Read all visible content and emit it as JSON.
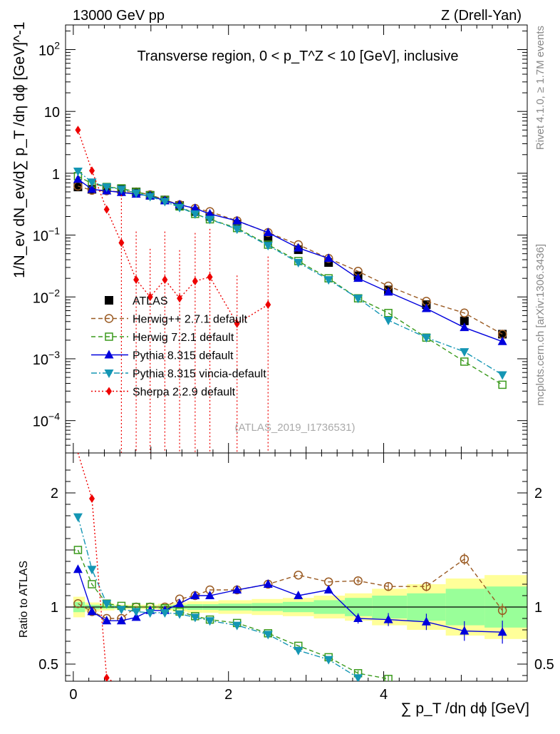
{
  "header": {
    "left": "13000 GeV pp",
    "right": "Z (Drell-Yan)",
    "side_rivet": "Rivet 4.1.0, ≥ 1.7M events",
    "side_mcplots": "mcplots.cern.ch [arXiv:1306.3436]",
    "watermark": "(ATLAS_2019_I1736531)"
  },
  "colors": {
    "ATLAS": "#000000",
    "Herwig++": "#9a5a22",
    "Herwig7": "#3a9a1c",
    "Pythia": "#0000dd",
    "Vincia": "#1496b4",
    "Sherpa": "#ee0000",
    "band_outer": "#ffff99",
    "band_inner": "#99ff99"
  },
  "chart_data": [
    {
      "type": "line",
      "panel": "main",
      "title": "Transverse region, 0 < p_T^Z < 10 [GeV], inclusive",
      "ylabel": "1/N_ev dN_ev/d∑ p_T /dη dϕ [GeV]^-1",
      "yscale": "log",
      "xlim": [
        -0.1,
        5.85
      ],
      "ylim": [
        3e-05,
        250
      ],
      "x_ticks": [
        "0",
        "2",
        "4"
      ],
      "y_ticks": [
        "10^-4",
        "10^-3",
        "10^-2",
        "10^-1",
        "1",
        "10",
        "10^2"
      ],
      "legend": [
        "ATLAS",
        "Herwig++ 2.7.1 default",
        "Herwig 7.2.1 default",
        "Pythia 8.315 default",
        "Pythia 8.315 vincia-default",
        "Sherpa 2.2.9 default"
      ],
      "x": [
        0.06,
        0.24,
        0.43,
        0.62,
        0.81,
        0.99,
        1.18,
        1.37,
        1.57,
        1.76,
        2.11,
        2.51,
        2.9,
        3.29,
        3.67,
        4.06,
        4.55,
        5.04,
        5.53
      ],
      "series": [
        {
          "name": "ATLAS",
          "values": [
            0.6,
            0.55,
            0.58,
            0.56,
            0.5,
            0.44,
            0.37,
            0.3,
            0.24,
            0.2,
            0.15,
            0.09,
            0.058,
            0.036,
            0.022,
            0.013,
            0.0075,
            0.0041,
            0.0025
          ]
        },
        {
          "name": "Herwig++ 2.7.1 default",
          "values": [
            0.62,
            0.53,
            0.52,
            0.5,
            0.5,
            0.45,
            0.37,
            0.31,
            0.27,
            0.24,
            0.17,
            0.11,
            0.07,
            0.042,
            0.026,
            0.015,
            0.0085,
            0.0055,
            0.0025
          ]
        },
        {
          "name": "Herwig 7.2.1 default",
          "values": [
            0.9,
            0.68,
            0.6,
            0.57,
            0.5,
            0.44,
            0.37,
            0.29,
            0.22,
            0.18,
            0.13,
            0.07,
            0.038,
            0.02,
            0.0095,
            0.0055,
            0.0022,
            0.0009,
            0.00038
          ]
        },
        {
          "name": "Pythia 8.315 default",
          "values": [
            0.8,
            0.55,
            0.52,
            0.49,
            0.46,
            0.43,
            0.36,
            0.31,
            0.27,
            0.22,
            0.17,
            0.11,
            0.062,
            0.042,
            0.02,
            0.012,
            0.0065,
            0.0032,
            0.0019
          ]
        },
        {
          "name": "Pythia 8.315 vincia-default",
          "values": [
            1.08,
            0.72,
            0.6,
            0.55,
            0.48,
            0.42,
            0.35,
            0.28,
            0.22,
            0.18,
            0.125,
            0.068,
            0.036,
            0.019,
            0.0095,
            0.0042,
            0.0022,
            0.0013,
            0.00055
          ]
        },
        {
          "name": "Sherpa 2.2.9 default",
          "x": [
            0.06,
            0.24,
            0.43,
            0.62,
            0.81,
            0.99,
            1.18,
            1.37,
            1.57,
            1.76,
            2.11,
            2.51
          ],
          "values": [
            5.0,
            1.1,
            0.26,
            0.075,
            0.019,
            0.01,
            0.019,
            0.0095,
            0.018,
            0.021,
            0.0037,
            0.0075
          ]
        }
      ]
    },
    {
      "type": "line",
      "panel": "ratio",
      "ylabel": "Ratio to ATLAS",
      "xlabel": "∑ p_T /dη dϕ [GeV]",
      "xlim": [
        -0.1,
        5.85
      ],
      "ylim": [
        0.35,
        2.35
      ],
      "y_ticks": [
        "0.5",
        "1",
        "2"
      ],
      "x_ticks": [
        "0",
        "2",
        "4"
      ],
      "reference": 1,
      "band_x_edges": [
        0,
        0.15,
        0.34,
        0.53,
        0.72,
        0.9,
        1.09,
        1.28,
        1.47,
        1.67,
        1.87,
        2.3,
        2.7,
        3.1,
        3.5,
        3.85,
        4.3,
        4.8,
        5.3,
        5.85
      ],
      "band_outer": [
        0.09,
        0.04,
        0.03,
        0.02,
        0.02,
        0.02,
        0.03,
        0.04,
        0.05,
        0.05,
        0.06,
        0.07,
        0.08,
        0.1,
        0.12,
        0.16,
        0.2,
        0.25,
        0.28
      ],
      "band_inner": [
        0.045,
        0.02,
        0.015,
        0.01,
        0.01,
        0.01,
        0.015,
        0.02,
        0.025,
        0.025,
        0.03,
        0.035,
        0.045,
        0.06,
        0.08,
        0.1,
        0.12,
        0.16,
        0.18
      ],
      "series": [
        {
          "name": "Herwig++ 2.7.1 default",
          "x": [
            0.06,
            0.24,
            0.43,
            0.62,
            0.81,
            0.99,
            1.18,
            1.37,
            1.57,
            1.76,
            2.11,
            2.51,
            2.9,
            3.29,
            3.67,
            4.06,
            4.55,
            5.04,
            5.53
          ],
          "values": [
            1.03,
            0.96,
            0.9,
            0.9,
            1.0,
            1.0,
            1.0,
            1.07,
            1.1,
            1.15,
            1.15,
            1.2,
            1.28,
            1.22,
            1.23,
            1.18,
            1.18,
            1.42,
            0.97
          ]
        },
        {
          "name": "Herwig 7.2.1 default",
          "x": [
            0.06,
            0.24,
            0.43,
            0.62,
            0.81,
            0.99,
            1.18,
            1.37,
            1.57,
            1.76,
            2.11,
            2.51,
            2.9,
            3.29,
            3.67,
            4.06
          ],
          "values": [
            1.5,
            1.2,
            1.03,
            1.01,
            1.0,
            1.0,
            0.99,
            0.96,
            0.92,
            0.89,
            0.86,
            0.77,
            0.66,
            0.56,
            0.42,
            0.37
          ]
        },
        {
          "name": "Pythia 8.315 default",
          "x": [
            0.06,
            0.24,
            0.43,
            0.62,
            0.81,
            0.99,
            1.18,
            1.37,
            1.57,
            1.76,
            2.11,
            2.51,
            2.9,
            3.29,
            3.67,
            4.06,
            4.55,
            5.04,
            5.53
          ],
          "values": [
            1.33,
            0.96,
            0.88,
            0.88,
            0.91,
            0.97,
            0.97,
            1.03,
            1.1,
            1.1,
            1.15,
            1.2,
            1.1,
            1.15,
            0.9,
            0.89,
            0.87,
            0.79,
            0.78
          ]
        },
        {
          "name": "Pythia 8.315 vincia-default",
          "x": [
            0.06,
            0.24,
            0.43,
            0.62,
            0.81,
            0.99,
            1.18,
            1.37,
            1.57,
            1.76,
            2.11,
            2.51,
            2.9,
            3.29,
            3.67
          ],
          "values": [
            1.79,
            1.33,
            1.03,
            0.98,
            0.96,
            0.95,
            0.95,
            0.94,
            0.91,
            0.88,
            0.84,
            0.76,
            0.62,
            0.54,
            0.38
          ]
        },
        {
          "name": "Sherpa 2.2.9 default",
          "x": [
            0.24,
            0.43
          ],
          "values": [
            1.95,
            0.38
          ]
        }
      ]
    }
  ]
}
